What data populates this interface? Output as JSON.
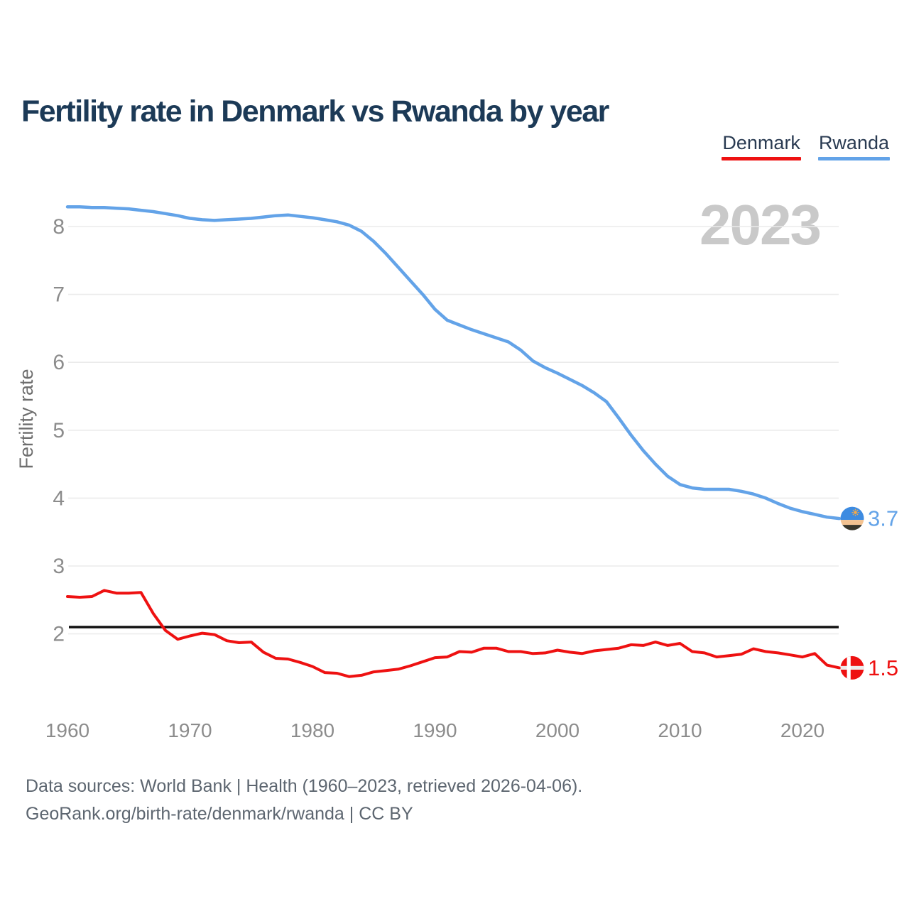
{
  "header": {
    "title": "Fertility rate in Denmark vs Rwanda by year"
  },
  "legend": {
    "items": [
      {
        "label": "Denmark"
      },
      {
        "label": "Rwanda"
      }
    ]
  },
  "watermark": "2023",
  "footer": {
    "line1": "Data sources: World Bank | Health (1960–2023, retrieved 2026-04-06).",
    "line2": "GeoRank.org/birth-rate/denmark/rwanda | CC BY"
  },
  "chart_data": {
    "type": "line",
    "title": "Fertility rate in Denmark vs Rwanda by year",
    "xlabel": "",
    "ylabel": "Fertility rate",
    "x_start": 1960,
    "x_step": 1,
    "x_end": 2023,
    "xticks": [
      1960,
      1970,
      1980,
      1990,
      2000,
      2010,
      2020
    ],
    "yticks": [
      2,
      3,
      4,
      5,
      6,
      7,
      8
    ],
    "ylim": [
      1.1,
      8.6
    ],
    "grid": true,
    "legend_position": "top-right",
    "reference_line": {
      "value": 2.1,
      "color": "#111111"
    },
    "series": [
      {
        "name": "Denmark",
        "color": "#ee1111",
        "flag": "denmark",
        "end_label": "1.5",
        "values": [
          2.55,
          2.54,
          2.55,
          2.64,
          2.6,
          2.6,
          2.61,
          2.3,
          2.05,
          1.92,
          1.97,
          2.01,
          1.99,
          1.9,
          1.87,
          1.88,
          1.73,
          1.64,
          1.63,
          1.58,
          1.52,
          1.43,
          1.42,
          1.37,
          1.39,
          1.44,
          1.46,
          1.48,
          1.53,
          1.59,
          1.65,
          1.66,
          1.74,
          1.73,
          1.79,
          1.79,
          1.74,
          1.74,
          1.71,
          1.72,
          1.76,
          1.73,
          1.71,
          1.75,
          1.77,
          1.79,
          1.84,
          1.83,
          1.88,
          1.83,
          1.86,
          1.74,
          1.72,
          1.66,
          1.68,
          1.7,
          1.78,
          1.74,
          1.72,
          1.69,
          1.66,
          1.71,
          1.54,
          1.5
        ]
      },
      {
        "name": "Rwanda",
        "color": "#63a3e8",
        "flag": "rwanda",
        "end_label": "3.7",
        "values": [
          8.29,
          8.29,
          8.28,
          8.28,
          8.27,
          8.26,
          8.24,
          8.22,
          8.19,
          8.16,
          8.12,
          8.1,
          8.09,
          8.1,
          8.11,
          8.12,
          8.14,
          8.16,
          8.17,
          8.15,
          8.13,
          8.1,
          8.07,
          8.02,
          7.93,
          7.78,
          7.6,
          7.4,
          7.2,
          7.0,
          6.78,
          6.62,
          6.55,
          6.48,
          6.42,
          6.36,
          6.3,
          6.18,
          6.02,
          5.92,
          5.84,
          5.75,
          5.66,
          5.55,
          5.42,
          5.18,
          4.93,
          4.7,
          4.5,
          4.32,
          4.2,
          4.15,
          4.13,
          4.13,
          4.13,
          4.1,
          4.06,
          4.0,
          3.92,
          3.85,
          3.8,
          3.76,
          3.72,
          3.7
        ]
      }
    ]
  }
}
